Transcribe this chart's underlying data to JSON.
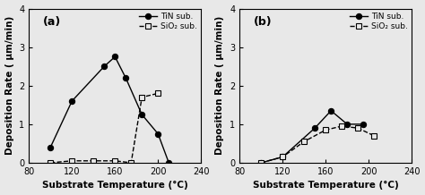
{
  "panel_a": {
    "label": "(a)",
    "TiN_x": [
      100,
      120,
      150,
      160,
      170,
      185,
      200,
      210
    ],
    "TiN_y": [
      0.4,
      1.6,
      2.5,
      2.75,
      2.2,
      1.25,
      0.75,
      0.0
    ],
    "SiO2_x": [
      100,
      120,
      140,
      160,
      175,
      185,
      200
    ],
    "SiO2_y": [
      0.0,
      0.05,
      0.05,
      0.05,
      0.0,
      1.7,
      1.8
    ]
  },
  "panel_b": {
    "label": "(b)",
    "TiN_x": [
      100,
      120,
      150,
      165,
      180,
      195
    ],
    "TiN_y": [
      0.0,
      0.15,
      0.9,
      1.35,
      1.0,
      1.0
    ],
    "SiO2_x": [
      100,
      120,
      140,
      160,
      175,
      190,
      205
    ],
    "SiO2_y": [
      0.0,
      0.15,
      0.55,
      0.85,
      0.95,
      0.9,
      0.7
    ]
  },
  "xlim": [
    80,
    240
  ],
  "ylim": [
    0,
    4
  ],
  "xticks": [
    80,
    120,
    160,
    200,
    240
  ],
  "yticks": [
    0,
    1,
    2,
    3,
    4
  ],
  "xlabel": "Substrate Temperature (°C)",
  "ylabel": "Deposition Rate ( μm/min)",
  "legend_TiN": "TiN sub.",
  "legend_SiO2": "SiO₂ sub.",
  "line_color": "black",
  "bg_color": "#e8e8e8"
}
